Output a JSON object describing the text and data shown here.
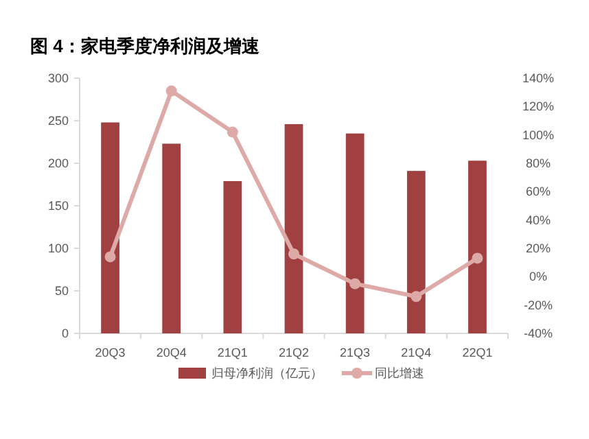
{
  "chart_data": {
    "type": "bar",
    "title": "图 4：家电季度净利润及增速",
    "categories": [
      "20Q3",
      "20Q4",
      "21Q1",
      "21Q2",
      "21Q3",
      "21Q4",
      "22Q1"
    ],
    "series": [
      {
        "name": "归母净利润（亿元）",
        "color": "#a04040",
        "values": [
          248,
          223,
          179,
          246,
          235,
          191,
          203
        ]
      },
      {
        "name": "同比增速",
        "type": "line",
        "axis": "y2",
        "color": "#deaaa8",
        "marker": "circle",
        "values": [
          14,
          131,
          102,
          16,
          -5,
          -14,
          13
        ]
      }
    ],
    "ylim": [
      0,
      300
    ],
    "yticks": [
      0,
      50,
      100,
      150,
      200,
      250,
      300
    ],
    "y2lim": [
      -40,
      140
    ],
    "y2ticks": [
      {
        "value": -40,
        "label": "-40%"
      },
      {
        "value": -20,
        "label": "-20%"
      },
      {
        "value": 0,
        "label": "0%"
      },
      {
        "value": 20,
        "label": "20%"
      },
      {
        "value": 40,
        "label": "40%"
      },
      {
        "value": 60,
        "label": "60%"
      },
      {
        "value": 80,
        "label": "80%"
      },
      {
        "value": 100,
        "label": "100%"
      },
      {
        "value": 120,
        "label": "120%"
      },
      {
        "value": 140,
        "label": "140%"
      }
    ],
    "legend": "bottom",
    "grid": false
  }
}
